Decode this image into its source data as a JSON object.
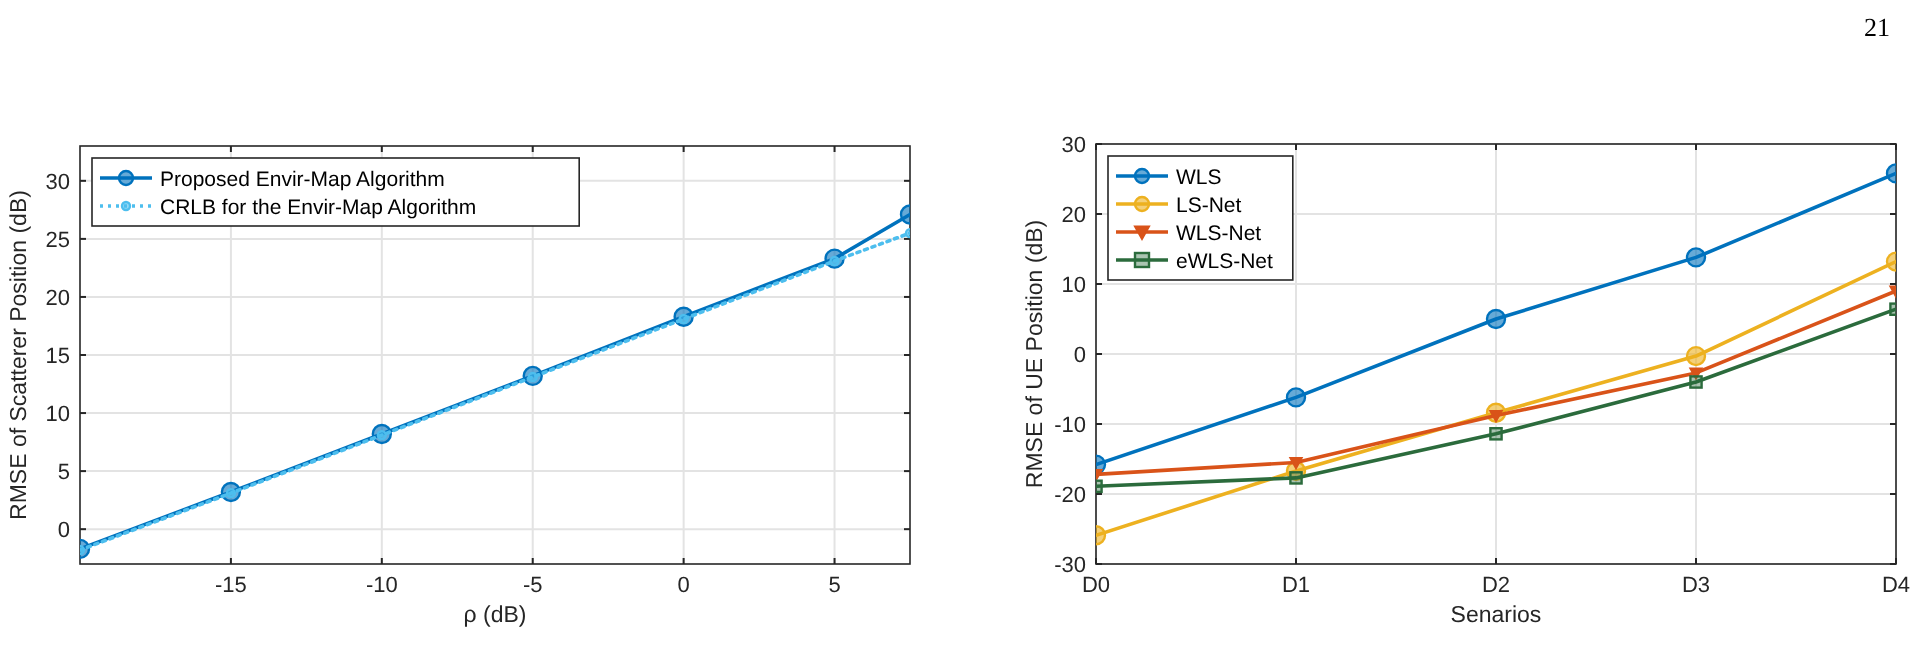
{
  "chart_data": [
    {
      "type": "line",
      "xlabel": "ρ (dB)",
      "ylabel": "RMSE of Scatterer Position (dB)",
      "x": [
        -20,
        -15,
        -10,
        -5,
        0,
        5,
        7.5
      ],
      "xlim": [
        -20,
        7.5
      ],
      "xticks": [
        -15,
        -10,
        -5,
        0,
        5
      ],
      "ylim": [
        -3,
        33
      ],
      "yticks": [
        0,
        5,
        10,
        15,
        20,
        25,
        30
      ],
      "grid": true,
      "legend": "top left",
      "series": [
        {
          "name": "Proposed Envir-Map Algorithm",
          "color": "#0072bd",
          "values": [
            -1.7,
            3.2,
            8.2,
            13.2,
            18.3,
            23.3,
            27.1
          ],
          "marker": "circle",
          "line_style": "solid"
        },
        {
          "name": "CRLB for the Envir-Map Algorithm",
          "color": "#4dbeee",
          "values": [
            -1.8,
            3.1,
            8.1,
            13.1,
            18.1,
            23.1,
            25.5
          ],
          "marker": "circle",
          "line_style": "dotted"
        }
      ]
    },
    {
      "type": "line",
      "xlabel": "Senarios",
      "ylabel": "RMSE of UE Position (dB)",
      "categories": [
        "D0",
        "D1",
        "D2",
        "D3",
        "D4"
      ],
      "ylim": [
        -30,
        30
      ],
      "yticks": [
        -30,
        -20,
        -10,
        0,
        10,
        20,
        30
      ],
      "grid": true,
      "legend": "top left",
      "annotations": [
        "21"
      ],
      "series": [
        {
          "name": "WLS",
          "color": "#0072bd",
          "values": [
            -15.8,
            -6.2,
            5,
            13.8,
            25.8
          ],
          "marker": "circle"
        },
        {
          "name": "LS-Net",
          "color": "#edb120",
          "values": [
            -25.9,
            -16.7,
            -8.4,
            -0.3,
            13.2
          ],
          "marker": "circle"
        },
        {
          "name": "WLS-Net",
          "color": "#d95319",
          "values": [
            -17.2,
            -15.5,
            -8.8,
            -2.7,
            9
          ],
          "marker": "triangle"
        },
        {
          "name": "eWLS-Net",
          "color": "#2b6b3c",
          "values": [
            -18.9,
            -17.7,
            -11.4,
            -4,
            6.4
          ],
          "marker": "square"
        }
      ]
    }
  ]
}
